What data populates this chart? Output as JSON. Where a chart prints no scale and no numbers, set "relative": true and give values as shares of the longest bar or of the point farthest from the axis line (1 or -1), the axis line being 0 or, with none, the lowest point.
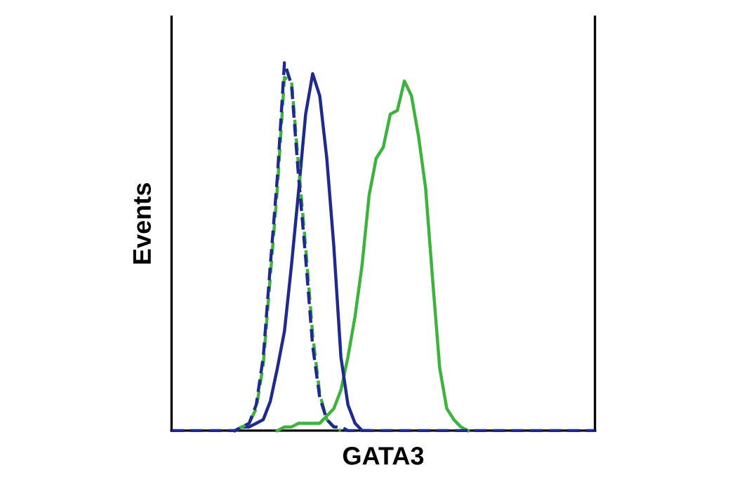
{
  "chart_data": {
    "type": "line",
    "relative": true,
    "xlabel": "GATA3",
    "ylabel": "Events",
    "categories": [
      null,
      null,
      null,
      null,
      null,
      null,
      null,
      null,
      null,
      null,
      null,
      null,
      null,
      null,
      null,
      null,
      null,
      null,
      null,
      null,
      null,
      null,
      null,
      null,
      null,
      null,
      null,
      null,
      null,
      null,
      null,
      null,
      null,
      null,
      null,
      null,
      null,
      null,
      null,
      null,
      null,
      null,
      null,
      null,
      null,
      null,
      null,
      null,
      null,
      null,
      null,
      null,
      null,
      null,
      null,
      null,
      null,
      null,
      null,
      null,
      null
    ],
    "series": [
      {
        "color": "#3cb43c",
        "line_style": "solid",
        "values": [
          null,
          null,
          null,
          null,
          null,
          null,
          null,
          null,
          null,
          null,
          null,
          null,
          null,
          null,
          null,
          0,
          0.01,
          0.01,
          0.02,
          0.02,
          0.02,
          0.02,
          0.04,
          0.06,
          0.11,
          0.2,
          0.31,
          0.45,
          0.64,
          0.74,
          0.77,
          0.86,
          0.87,
          0.95,
          0.91,
          0.8,
          0.66,
          0.41,
          0.17,
          0.06,
          0.03,
          0.01,
          0,
          null,
          null,
          null,
          null,
          null,
          null,
          null,
          null,
          null,
          null,
          null,
          null,
          null,
          null,
          null,
          null,
          null,
          null
        ]
      },
      {
        "color": "#1f2a8f",
        "line_style": "solid",
        "values": [
          null,
          null,
          null,
          null,
          null,
          null,
          null,
          null,
          null,
          0,
          0.01,
          0.01,
          0.02,
          0.03,
          0.08,
          0.17,
          0.27,
          0.45,
          0.65,
          0.86,
          0.97,
          0.91,
          0.74,
          0.5,
          0.2,
          0.07,
          0.02,
          0,
          0,
          null,
          null,
          null,
          null,
          null,
          null,
          null,
          null,
          null,
          null,
          null,
          null,
          null,
          null,
          null,
          null,
          null,
          null,
          null,
          null,
          null,
          null,
          null,
          null,
          null,
          null,
          null,
          null,
          null,
          null,
          null,
          null
        ]
      },
      {
        "color": "#3cb43c",
        "line_style": "dashed",
        "values": [
          null,
          null,
          null,
          null,
          null,
          null,
          null,
          null,
          null,
          0,
          0.01,
          0.02,
          0.06,
          0.18,
          0.42,
          0.66,
          0.96,
          0.95,
          0.72,
          0.5,
          0.26,
          0.1,
          0.03,
          0.01,
          0,
          null,
          null,
          null,
          null,
          null,
          null,
          null,
          null,
          null,
          null,
          null,
          null,
          null,
          null,
          null,
          null,
          null,
          null,
          null,
          null,
          null,
          null,
          null,
          null,
          null,
          null,
          null,
          null,
          null,
          null,
          null,
          null,
          null,
          null,
          null,
          null
        ]
      },
      {
        "color": "#1f2a8f",
        "line_style": "dashed",
        "values": [
          0,
          0,
          0,
          0,
          0,
          0,
          0,
          0,
          0,
          0,
          0.01,
          0.02,
          0.07,
          0.2,
          0.45,
          0.69,
          1,
          0.94,
          0.69,
          0.47,
          0.23,
          0.09,
          0.03,
          0.01,
          0.01,
          0,
          0,
          0,
          0,
          0,
          0,
          0,
          0,
          0,
          0,
          0,
          0,
          0,
          0,
          0,
          0,
          0,
          0,
          0,
          0,
          0,
          0,
          0,
          0,
          0,
          0,
          0,
          0,
          0,
          0,
          0,
          0,
          0,
          0,
          0,
          0
        ]
      }
    ]
  }
}
